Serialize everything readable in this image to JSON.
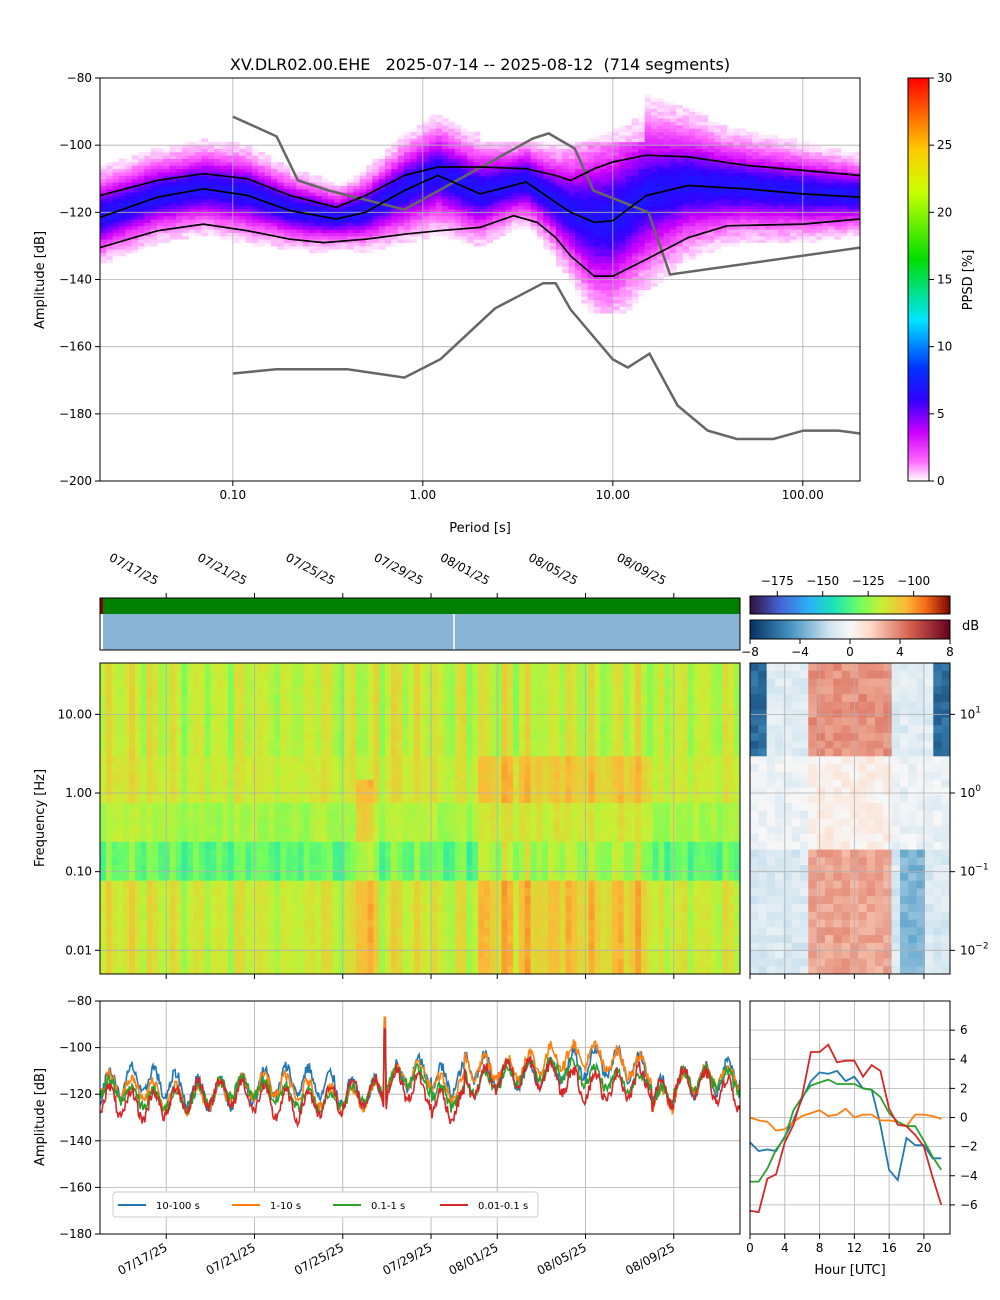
{
  "colors": {
    "grid": "#b0b0b0",
    "model_curve": "#666666",
    "percentile_curve": "#000000",
    "availability": "#008000",
    "gap_marker": "#8B0000",
    "coverage": "#8ab4d6",
    "s10_100": "#1f77b4",
    "s1_10": "#ff7f0e",
    "s01_1": "#2ca02c",
    "s001_01": "#d62728"
  },
  "chart_data": [
    {
      "id": "ppsd",
      "type": "heatmap",
      "title": "XV.DLR02.00.EHE   2025-07-14 -- 2025-08-12  (714 segments)",
      "xlabel": "Period [s]",
      "ylabel": "Amplitude [dB]",
      "xscale": "log",
      "xlim": [
        0.02,
        200
      ],
      "ylim": [
        -200,
        -80
      ],
      "xticks": [
        0.1,
        1,
        10,
        100
      ],
      "xtick_labels": [
        "0.10",
        "1.00",
        "10.00",
        "100.00"
      ],
      "yticks": [
        -200,
        -180,
        -160,
        -140,
        -120,
        -100,
        -80
      ],
      "colorbar": {
        "label": "PPSD [%]",
        "ticks": [
          0,
          5,
          10,
          15,
          20,
          25,
          30
        ],
        "range": [
          0,
          30
        ]
      },
      "model_high": {
        "x": [
          0.1,
          0.17,
          0.22,
          0.32,
          0.8,
          3.8,
          4.6,
          6.3,
          7.9,
          15.4,
          20,
          354.8
        ],
        "y": [
          -91.5,
          -97.4,
          -110.5,
          -113.5,
          -119.2,
          -98,
          -96.5,
          -101,
          -113.5,
          -120,
          -138.5,
          -128.5
        ]
      },
      "model_low": {
        "x": [
          0.1,
          0.17,
          0.4,
          0.8,
          1.24,
          2.4,
          4.3,
          5,
          6,
          10,
          12,
          15.6,
          21.9,
          31.6,
          45,
          70,
          101,
          154,
          328
        ],
        "y": [
          -168,
          -166.7,
          -166.7,
          -169.2,
          -163.7,
          -148.6,
          -141.1,
          -141.1,
          -149,
          -163.8,
          -166.2,
          -162.1,
          -177.5,
          -185,
          -187.5,
          -187.5,
          -185,
          -185,
          -187.5
        ]
      },
      "percentile_high": {
        "x": [
          0.02,
          0.04,
          0.07,
          0.12,
          0.2,
          0.35,
          0.5,
          0.8,
          1.2,
          2,
          3.5,
          5,
          6,
          8,
          10,
          15,
          25,
          50,
          100,
          200
        ],
        "y": [
          -115,
          -110.5,
          -108.5,
          -110,
          -115,
          -118.5,
          -115,
          -109,
          -106.5,
          -106.5,
          -107,
          -109,
          -110.5,
          -107,
          -105,
          -103,
          -103.5,
          -106,
          -107.5,
          -109
        ]
      },
      "percentile_mid": {
        "x": [
          0.02,
          0.04,
          0.07,
          0.12,
          0.2,
          0.35,
          0.5,
          0.8,
          1.2,
          2,
          3.5,
          5,
          6,
          8,
          10,
          15,
          25,
          50,
          100,
          200
        ],
        "y": [
          -121.5,
          -115.5,
          -113,
          -115,
          -119.5,
          -122,
          -120,
          -113.5,
          -109,
          -114.5,
          -111,
          -117,
          -120,
          -123,
          -122.5,
          -115,
          -112,
          -113,
          -114.5,
          -115.5
        ]
      },
      "percentile_low": {
        "x": [
          0.02,
          0.04,
          0.07,
          0.12,
          0.2,
          0.3,
          0.5,
          0.8,
          1.2,
          2,
          3,
          4,
          5,
          6,
          8,
          10,
          15,
          25,
          40,
          100,
          200
        ],
        "y": [
          -130.5,
          -125.5,
          -123.5,
          -125.5,
          -128,
          -129,
          -128,
          -126.5,
          -125.5,
          -124.5,
          -121,
          -123,
          -127.5,
          -133,
          -139,
          -139,
          -134,
          -127.5,
          -124,
          -123.5,
          -122
        ]
      }
    },
    {
      "id": "spectrogram",
      "type": "heatmap",
      "ylabel": "Frequency [Hz]",
      "yscale": "log",
      "ylim": [
        0.005,
        45
      ],
      "yticks": [
        0.01,
        0.1,
        1,
        10
      ],
      "ytick_labels": [
        "0.01",
        "0.10",
        "1.00",
        "10.00"
      ],
      "time_range": [
        "2025-07-14",
        "2025-08-12"
      ],
      "date_ticks": [
        "07/17/25",
        "07/21/25",
        "07/25/25",
        "07/29/25",
        "08/01/25",
        "08/05/25",
        "08/09/25"
      ],
      "colorbar": {
        "ticks": [
          -175,
          -150,
          -125,
          -100
        ],
        "range": [
          -190,
          -80
        ]
      }
    },
    {
      "id": "diurnal_spectrogram",
      "type": "heatmap",
      "yscale": "log",
      "ytick_labels": [
        "10^1",
        "10^0",
        "10^-1",
        "10^-2"
      ],
      "colorbar": {
        "label": "dB",
        "ticks": [
          -8,
          -4,
          0,
          4,
          8
        ],
        "range": [
          -8,
          8
        ]
      }
    },
    {
      "id": "band_timeseries",
      "type": "line",
      "ylabel": "Amplitude [dB]",
      "ylim": [
        -180,
        -80
      ],
      "yticks": [
        -180,
        -160,
        -140,
        -120,
        -100,
        -80
      ],
      "date_ticks": [
        "07/17/25",
        "07/21/25",
        "07/25/25",
        "07/29/25",
        "08/01/25",
        "08/05/25",
        "08/09/25"
      ],
      "legend": "lower left",
      "series": [
        {
          "name": "10-100 s",
          "base": -117,
          "amp": 6,
          "peak": -87
        },
        {
          "name": "1-10 s",
          "base": -119,
          "amp": 5,
          "peak": -87
        },
        {
          "name": "0.1-1 s",
          "base": -120,
          "amp": 4,
          "peak": -93
        },
        {
          "name": "0.01-0.1 s",
          "base": -122,
          "amp": 6,
          "peak": -92
        }
      ]
    },
    {
      "id": "diurnal_bands",
      "type": "line",
      "xlabel": "Hour [UTC]",
      "xlim": [
        0,
        23
      ],
      "ylim": [
        -8,
        8
      ],
      "xticks": [
        0,
        4,
        8,
        12,
        16,
        20
      ],
      "yticks": [
        -6,
        -4,
        -2,
        0,
        2,
        4,
        6
      ],
      "x": [
        0,
        1,
        2,
        3,
        4,
        5,
        6,
        7,
        8,
        9,
        10,
        11,
        12,
        13,
        14,
        15,
        16,
        17,
        18,
        19,
        20,
        21,
        22
      ],
      "series": [
        {
          "name": "10-100 s",
          "values": [
            -1.7,
            -2.3,
            -2.2,
            -2.3,
            -1.3,
            -0.2,
            1.3,
            2.5,
            3.1,
            3.0,
            3.2,
            2.5,
            2.8,
            2.0,
            1.9,
            -0.5,
            -3.6,
            -4.3,
            -1.4,
            -1.9,
            -1.9,
            -2.8,
            -2.8
          ]
        },
        {
          "name": "1-10 s",
          "values": [
            0.0,
            -0.2,
            -0.3,
            -0.9,
            -0.8,
            -0.3,
            0.1,
            0.3,
            0.5,
            0.1,
            0.2,
            0.6,
            0.0,
            0.2,
            0.2,
            -0.2,
            -0.2,
            -0.3,
            -0.6,
            0.2,
            0.2,
            0.1,
            -0.1
          ]
        },
        {
          "name": "0.1-1 s",
          "values": [
            -4.4,
            -4.4,
            -3.5,
            -2.2,
            -1.4,
            0.5,
            1.4,
            2.2,
            2.4,
            2.6,
            2.3,
            2.3,
            2.3,
            2.0,
            1.9,
            1.4,
            0.3,
            -0.3,
            -0.6,
            -0.6,
            -1.6,
            -2.7,
            -3.6
          ]
        },
        {
          "name": "0.01-0.1 s",
          "values": [
            -6.4,
            -6.5,
            -4.2,
            -3.9,
            -1.7,
            -0.5,
            1.5,
            4.5,
            4.5,
            5.0,
            3.8,
            3.9,
            3.9,
            2.8,
            3.6,
            3.2,
            0.6,
            -0.5,
            -0.6,
            -1.2,
            -2.0,
            -4.1,
            -6.0
          ]
        }
      ]
    }
  ]
}
